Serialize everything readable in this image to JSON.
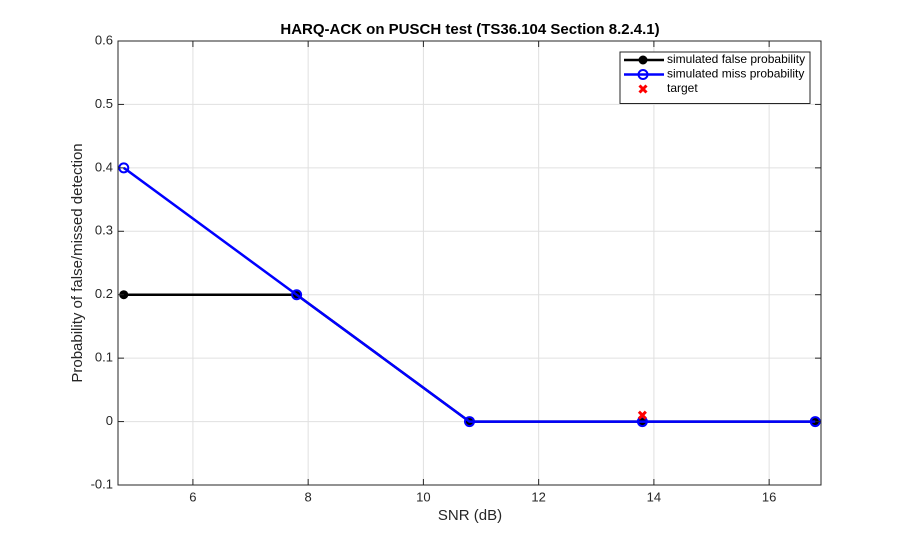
{
  "chart_data": {
    "type": "line",
    "title": "HARQ-ACK on PUSCH test (TS36.104 Section 8.2.4.1)",
    "x_label": "SNR (dB)",
    "y_label": "Probability of false/missed detection",
    "xlim": [
      4.7,
      16.9
    ],
    "xticks": [
      6,
      8,
      10,
      12,
      14,
      16
    ],
    "ylim": [
      -0.1,
      0.6
    ],
    "yticks": [
      -0.1,
      0,
      0.1,
      0.2,
      0.3,
      0.4,
      0.5,
      0.6
    ],
    "grid": true,
    "legend_position": "top-right",
    "series": [
      {
        "name": "simulated false probability",
        "color": "#000000",
        "marker": "filled-circle",
        "x": [
          4.8,
          7.8,
          10.8,
          13.8,
          16.8
        ],
        "values": [
          0.2,
          0.2,
          0,
          0,
          0
        ]
      },
      {
        "name": "simulated miss probability",
        "color": "#0000ff",
        "marker": "open-circle",
        "x": [
          4.8,
          7.8,
          10.8,
          13.8,
          16.8
        ],
        "values": [
          0.4,
          0.2,
          0,
          0,
          0
        ]
      },
      {
        "name": "target",
        "color": "#ff0000",
        "marker": "x",
        "x": [
          13.8
        ],
        "values": [
          0.01
        ]
      }
    ]
  }
}
